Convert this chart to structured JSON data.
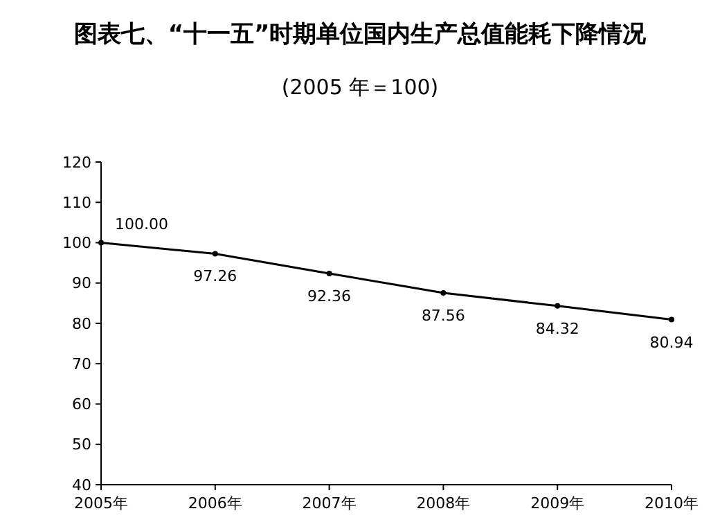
{
  "chart_data": {
    "type": "line",
    "title": "图表七、“十一五”时期单位国内生产总值能耗下降情况",
    "subtitle": "(2005 年＝100)",
    "categories": [
      "2005年",
      "2006年",
      "2007年",
      "2008年",
      "2009年",
      "2010年"
    ],
    "series": [
      {
        "color": "#000000",
        "values": [
          100.0,
          97.26,
          92.36,
          87.56,
          84.32,
          80.94
        ]
      }
    ],
    "value_labels": [
      "100.00",
      "97.26",
      "92.36",
      "87.56",
      "84.32",
      "80.94"
    ],
    "ylim": [
      40,
      120
    ],
    "yticks": [
      40,
      50,
      60,
      70,
      80,
      90,
      100,
      110,
      120
    ],
    "grid": false,
    "marker": "circle",
    "line_style": "solid"
  }
}
